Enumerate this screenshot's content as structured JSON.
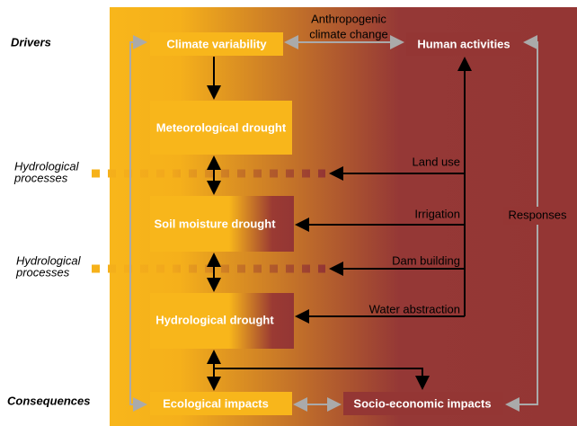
{
  "side_labels": {
    "drivers": "Drivers",
    "hydro_1": [
      "Hydrological",
      "processes"
    ],
    "hydro_2": [
      "Hydrological",
      "processes"
    ],
    "consequences": "Consequences"
  },
  "nodes": [
    "Climate variability",
    "Human activities",
    "Meteorological drought",
    "Soil moisture drought",
    "Hydrological drought",
    "Ecological impacts",
    "Socio-economic impacts"
  ],
  "edge_labels": {
    "anthropogenic": [
      "Anthropogenic",
      "climate change"
    ],
    "land_use": "Land use",
    "irrigation": "Irrigation",
    "dam_building": "Dam building",
    "water_abstraction": "Water abstraction",
    "responses": "Responses"
  }
}
